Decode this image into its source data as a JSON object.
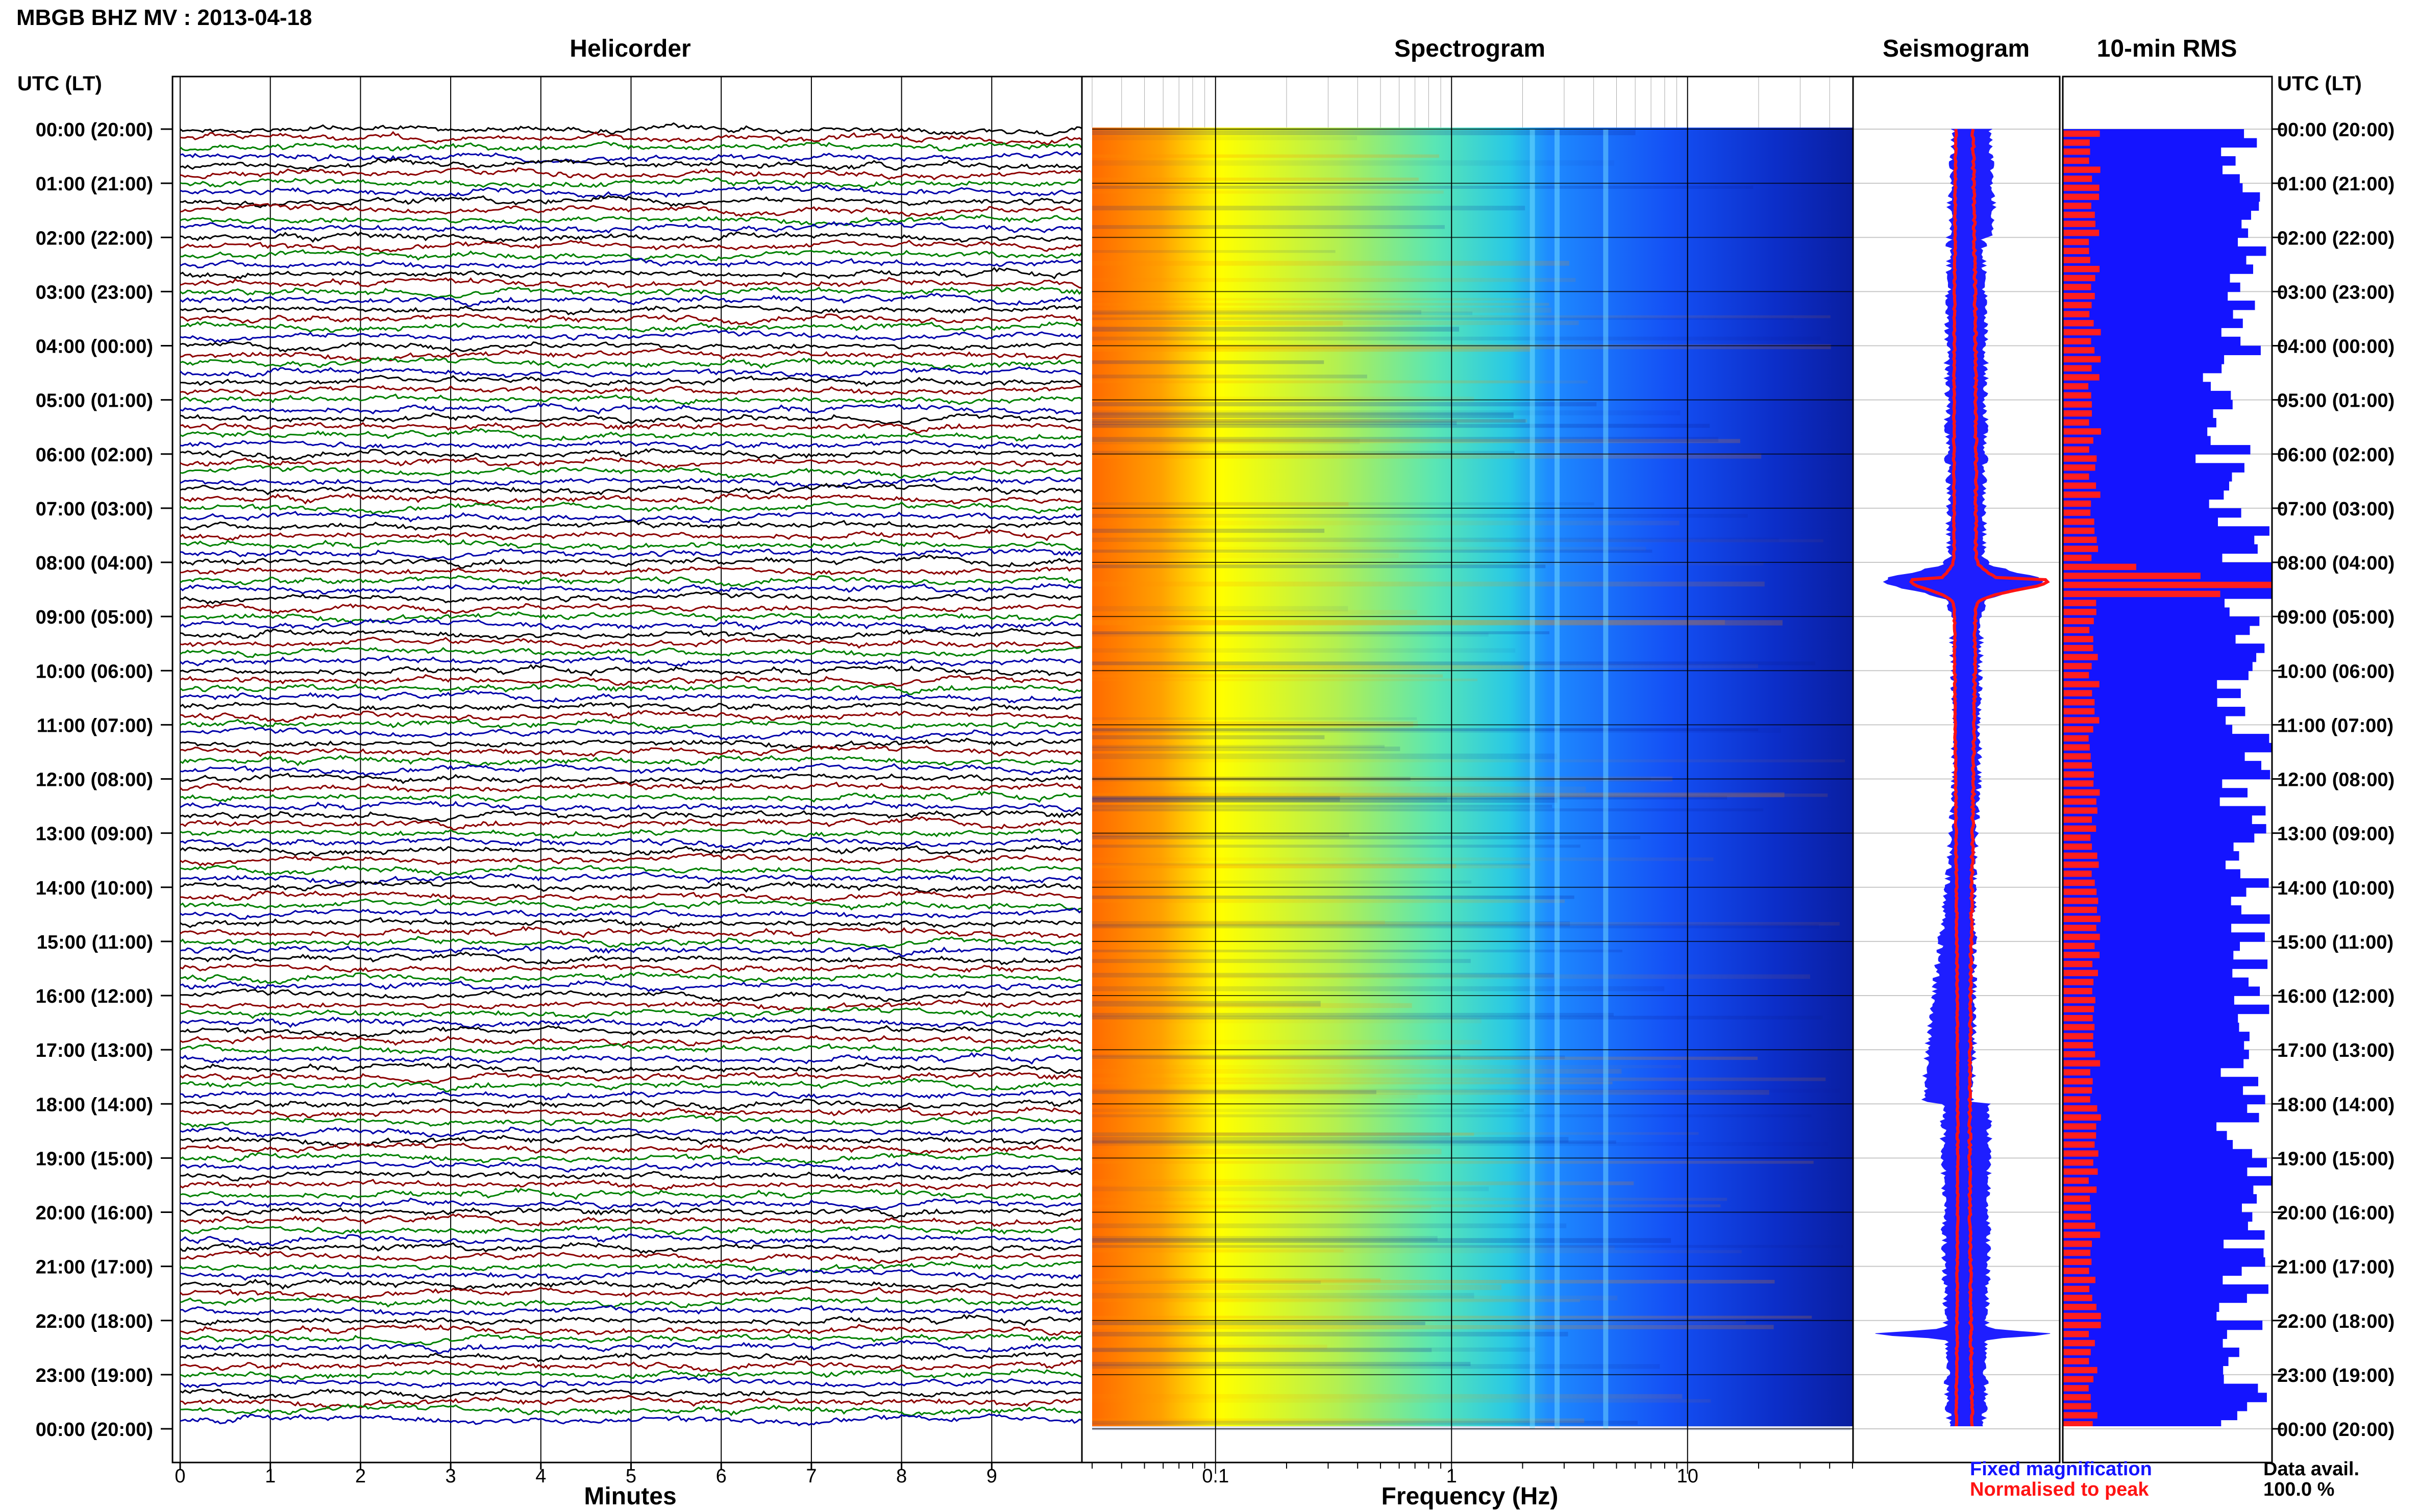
{
  "page_title": "MBGB BHZ MV : 2013-04-18",
  "panels": {
    "helicorder": "Helicorder",
    "spectrogram": "Spectrogram",
    "seismogram": "Seismogram",
    "rms": "10-min RMS"
  },
  "utc_header_left": "UTC (LT)",
  "utc_header_right": "UTC (LT)",
  "axis_titles": {
    "minutes": "Minutes",
    "frequency": "Frequency (Hz)"
  },
  "legend": {
    "fixed": "Fixed magnification",
    "normalised": "Normalised to peak",
    "fixed_color": "#1414ff",
    "normalised_color": "#ff1414"
  },
  "data_avail": {
    "label": "Data avail.",
    "value": "100.0 %"
  },
  "colors": {
    "helicorder_traces": [
      "#000000",
      "#8b0000",
      "#008000",
      "#0000aa"
    ],
    "seismo_fixed": "#1e1eff",
    "seismo_norm": "#ff1414",
    "rms_bar": "#1414ff",
    "rms_norm": "#ff1e1e"
  },
  "chart_data": [
    {
      "type": "line",
      "name": "helicorder",
      "title": "Helicorder",
      "xlabel": "Minutes",
      "x_ticks": [
        "0",
        "1",
        "2",
        "3",
        "4",
        "5",
        "6",
        "7",
        "8",
        "9"
      ],
      "xlim": [
        0,
        10
      ],
      "rows": 144,
      "ylabels": [
        "00:00 (20:00)",
        "01:00 (21:00)",
        "02:00 (22:00)",
        "03:00 (23:00)",
        "04:00 (00:00)",
        "05:00 (01:00)",
        "06:00 (02:00)",
        "07:00 (03:00)",
        "08:00 (04:00)",
        "09:00 (05:00)",
        "10:00 (06:00)",
        "11:00 (07:00)",
        "12:00 (08:00)",
        "13:00 (09:00)",
        "14:00 (10:00)",
        "15:00 (11:00)",
        "16:00 (12:00)",
        "17:00 (13:00)",
        "18:00 (14:00)",
        "19:00 (15:00)",
        "20:00 (16:00)",
        "21:00 (17:00)",
        "22:00 (18:00)",
        "23:00 (19:00)",
        "00:00 (20:00)"
      ]
    },
    {
      "type": "heatmap",
      "name": "spectrogram",
      "title": "Spectrogram",
      "xlabel": "Frequency (Hz)",
      "x_scale": "log",
      "xlim": [
        0.03,
        50
      ],
      "x_ticks": [
        "0.1",
        "1",
        "10"
      ],
      "colormap": [
        "#ff6a00",
        "#ffb400",
        "#ffff00",
        "#c8f03c",
        "#6ee6a0",
        "#32c8dc",
        "#1e8cff",
        "#1450ff",
        "#0a1ea0"
      ],
      "tremor_bands_hz": [
        2.2,
        2.8,
        4.5
      ]
    },
    {
      "type": "line",
      "name": "seismogram",
      "title": "Seismogram",
      "series": [
        {
          "name": "Fixed magnification",
          "color": "#1e1eff"
        },
        {
          "name": "Normalised to peak",
          "color": "#ff1414"
        }
      ],
      "event_times_utc": [
        "08:20",
        "22:15"
      ]
    },
    {
      "type": "bar",
      "name": "rms",
      "title": "10-min RMS",
      "orientation": "horizontal",
      "intervals": 144,
      "peak_time_utc": "08:20",
      "data_availability": "100.0 %",
      "series": [
        {
          "name": "Fixed magnification",
          "color": "#1414ff"
        },
        {
          "name": "Normalised to peak",
          "color": "#ff1e1e"
        }
      ]
    }
  ]
}
